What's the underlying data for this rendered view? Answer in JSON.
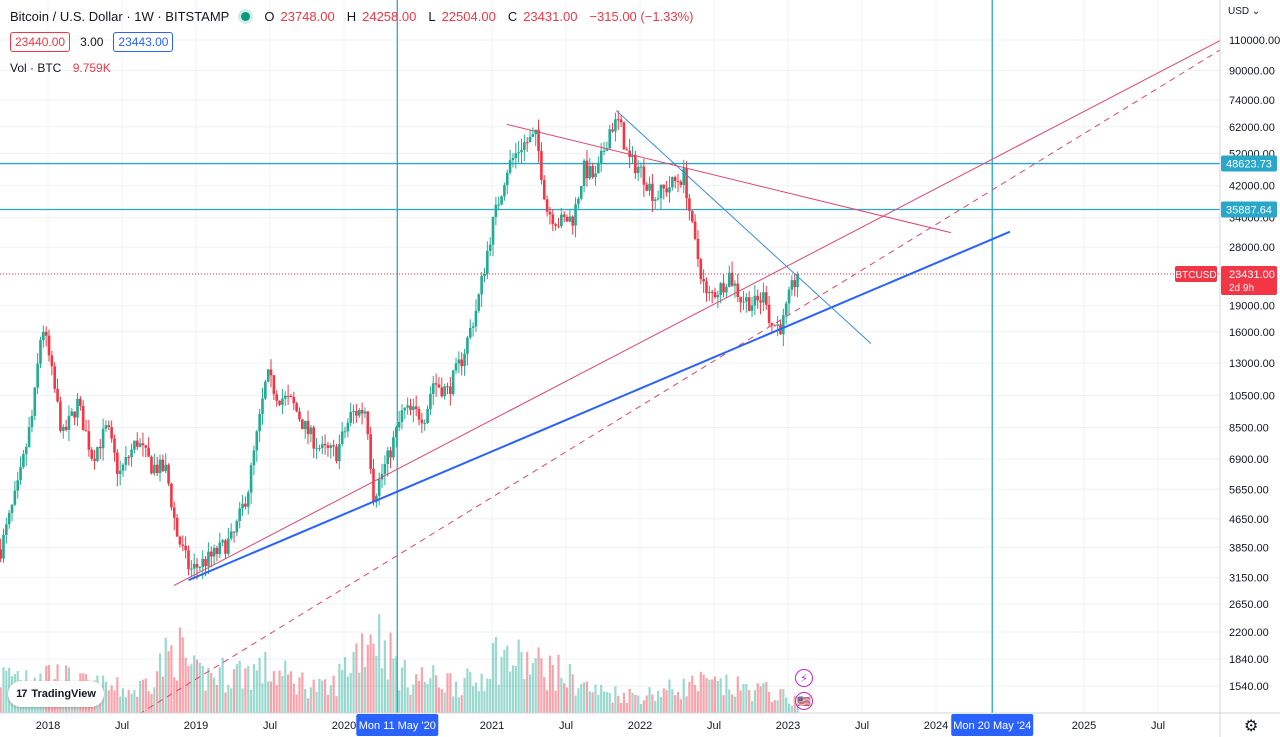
{
  "header": {
    "title": "Bitcoin / U.S. Dollar · 1W · BITSTAMP",
    "open_label": "O",
    "open": "23748.00",
    "high_label": "H",
    "high": "24258.00",
    "low_label": "L",
    "low": "22504.00",
    "close_label": "C",
    "close": "23431.00",
    "change": "−315.00 (−1.33%)"
  },
  "quote": {
    "bid": "23440.00",
    "spread": "3.00",
    "ask": "23443.00"
  },
  "volume": {
    "label": "Vol · BTC",
    "value": "9.759K"
  },
  "logo": {
    "mark": "17",
    "text": "TradingView"
  },
  "currency_menu": "USD ⌄",
  "settings_icon": "⚙",
  "events": {
    "icon1": "⚡",
    "icon2": "🇺🇸"
  },
  "colors": {
    "up": "#22ab94",
    "down": "#f23645",
    "pink": "#e0466c",
    "blue": "#2962ff",
    "lightblue": "#3d8ed6",
    "cyan": "#29a7c9"
  },
  "chart_data": {
    "type": "candlestick",
    "symbol": "BTCUSD",
    "interval": "1W",
    "y_scale": "log",
    "y_ticks": [
      1540,
      1840,
      2200,
      2650,
      3150,
      3850,
      4650,
      5650,
      6900,
      8500,
      10500,
      13000,
      16000,
      19000,
      23431,
      28000,
      34000,
      42000,
      52000,
      62000,
      74000,
      90000,
      110000
    ],
    "y_tick_labels": [
      "1540.00",
      "1840.00",
      "2200.00",
      "2650.00",
      "3150.00",
      "3850.00",
      "4650.00",
      "5650.00",
      "6900.00",
      "8500.00",
      "10500.00",
      "13000.00",
      "16000.00",
      "19000.00",
      "23431.00",
      "28000.00",
      "34000.00",
      "42000.00",
      "52000.00",
      "62000.00",
      "74000.00",
      "90000.00",
      "110000.00"
    ],
    "x_ticks": [
      {
        "t": 2018.0,
        "label": "2018"
      },
      {
        "t": 2018.5,
        "label": "Jul"
      },
      {
        "t": 2019.0,
        "label": "2019"
      },
      {
        "t": 2019.5,
        "label": "Jul"
      },
      {
        "t": 2020.0,
        "label": "2020"
      },
      {
        "t": 2021.0,
        "label": "2021"
      },
      {
        "t": 2021.5,
        "label": "Jul"
      },
      {
        "t": 2022.0,
        "label": "2022"
      },
      {
        "t": 2022.5,
        "label": "Jul"
      },
      {
        "t": 2023.0,
        "label": "2023"
      },
      {
        "t": 2023.5,
        "label": "Jul"
      },
      {
        "t": 2024.0,
        "label": "2024"
      },
      {
        "t": 2025.0,
        "label": "2025"
      },
      {
        "t": 2025.5,
        "label": "Jul"
      }
    ],
    "time_markers": [
      {
        "t": 2020.36,
        "label": "Mon 11 May '20"
      },
      {
        "t": 2024.38,
        "label": "Mon 20 May '24"
      }
    ],
    "horizontal_levels": [
      {
        "value": 48623.73,
        "label": "48623.73"
      },
      {
        "value": 35887.64,
        "label": "35887.64"
      }
    ],
    "current_price": {
      "value": 23431,
      "symbol_label": "BTCUSD",
      "price_label": "23431.00",
      "countdown": "2d 9h"
    },
    "price_path": [
      [
        2017.68,
        3800
      ],
      [
        2017.8,
        5800
      ],
      [
        2017.9,
        9500
      ],
      [
        2017.96,
        17000
      ],
      [
        2018.0,
        14000
      ],
      [
        2018.1,
        8000
      ],
      [
        2018.2,
        10000
      ],
      [
        2018.3,
        7000
      ],
      [
        2018.4,
        8500
      ],
      [
        2018.48,
        6200
      ],
      [
        2018.6,
        7800
      ],
      [
        2018.7,
        6600
      ],
      [
        2018.8,
        6400
      ],
      [
        2018.87,
        4200
      ],
      [
        2018.96,
        3300
      ],
      [
        2019.1,
        3600
      ],
      [
        2019.25,
        4100
      ],
      [
        2019.35,
        5600
      ],
      [
        2019.48,
        12000
      ],
      [
        2019.55,
        10500
      ],
      [
        2019.65,
        10000
      ],
      [
        2019.75,
        8300
      ],
      [
        2019.85,
        7300
      ],
      [
        2019.95,
        7200
      ],
      [
        2020.05,
        9300
      ],
      [
        2020.15,
        9600
      ],
      [
        2020.2,
        5400
      ],
      [
        2020.3,
        7000
      ],
      [
        2020.4,
        9500
      ],
      [
        2020.55,
        9200
      ],
      [
        2020.6,
        11500
      ],
      [
        2020.7,
        10800
      ],
      [
        2020.8,
        13500
      ],
      [
        2020.9,
        19000
      ],
      [
        2021.0,
        32000
      ],
      [
        2021.1,
        47000
      ],
      [
        2021.2,
        55000
      ],
      [
        2021.3,
        58000
      ],
      [
        2021.37,
        36000
      ],
      [
        2021.45,
        33000
      ],
      [
        2021.55,
        34000
      ],
      [
        2021.62,
        47000
      ],
      [
        2021.7,
        44000
      ],
      [
        2021.8,
        62000
      ],
      [
        2021.86,
        64000
      ],
      [
        2021.92,
        50000
      ],
      [
        2022.0,
        47000
      ],
      [
        2022.1,
        39000
      ],
      [
        2022.2,
        42000
      ],
      [
        2022.3,
        45000
      ],
      [
        2022.36,
        30000
      ],
      [
        2022.45,
        20000
      ],
      [
        2022.55,
        21500
      ],
      [
        2022.6,
        23500
      ],
      [
        2022.68,
        20000
      ],
      [
        2022.78,
        19200
      ],
      [
        2022.85,
        20500
      ],
      [
        2022.88,
        16800
      ],
      [
        2022.96,
        16600
      ],
      [
        2023.02,
        21000
      ],
      [
        2023.07,
        23431
      ]
    ],
    "volume_path": [
      [
        2017.68,
        0.25
      ],
      [
        2017.96,
        0.3
      ],
      [
        2018.2,
        0.2
      ],
      [
        2018.6,
        0.15
      ],
      [
        2018.87,
        0.45
      ],
      [
        2019.0,
        0.25
      ],
      [
        2019.45,
        0.3
      ],
      [
        2019.9,
        0.15
      ],
      [
        2020.2,
        0.6
      ],
      [
        2020.4,
        0.25
      ],
      [
        2020.9,
        0.2
      ],
      [
        2021.0,
        0.4
      ],
      [
        2021.4,
        0.3
      ],
      [
        2021.7,
        0.15
      ],
      [
        2022.0,
        0.12
      ],
      [
        2022.4,
        0.2
      ],
      [
        2022.85,
        0.15
      ],
      [
        2023.07,
        0.08
      ]
    ],
    "trendlines": [
      {
        "style": "solid",
        "color": "pink",
        "width": 1,
        "from": [
          2018.85,
          2990
        ],
        "to": [
          2026.6,
          155000
        ]
      },
      {
        "style": "dashed",
        "color": "pink",
        "width": 1,
        "from": [
          2018.55,
          1230
        ],
        "to": [
          2026.6,
          155000
        ]
      },
      {
        "style": "solid",
        "color": "blue",
        "width": 2,
        "from": [
          2018.95,
          3100
        ],
        "to": [
          2024.5,
          31000
        ]
      },
      {
        "style": "solid",
        "color": "lightblue",
        "width": 1,
        "from": [
          2021.84,
          69000
        ],
        "to": [
          2023.56,
          14800
        ]
      },
      {
        "style": "solid",
        "color": "pink",
        "width": 1,
        "from": [
          2021.1,
          63000
        ],
        "to": [
          2024.1,
          30800
        ]
      }
    ]
  }
}
